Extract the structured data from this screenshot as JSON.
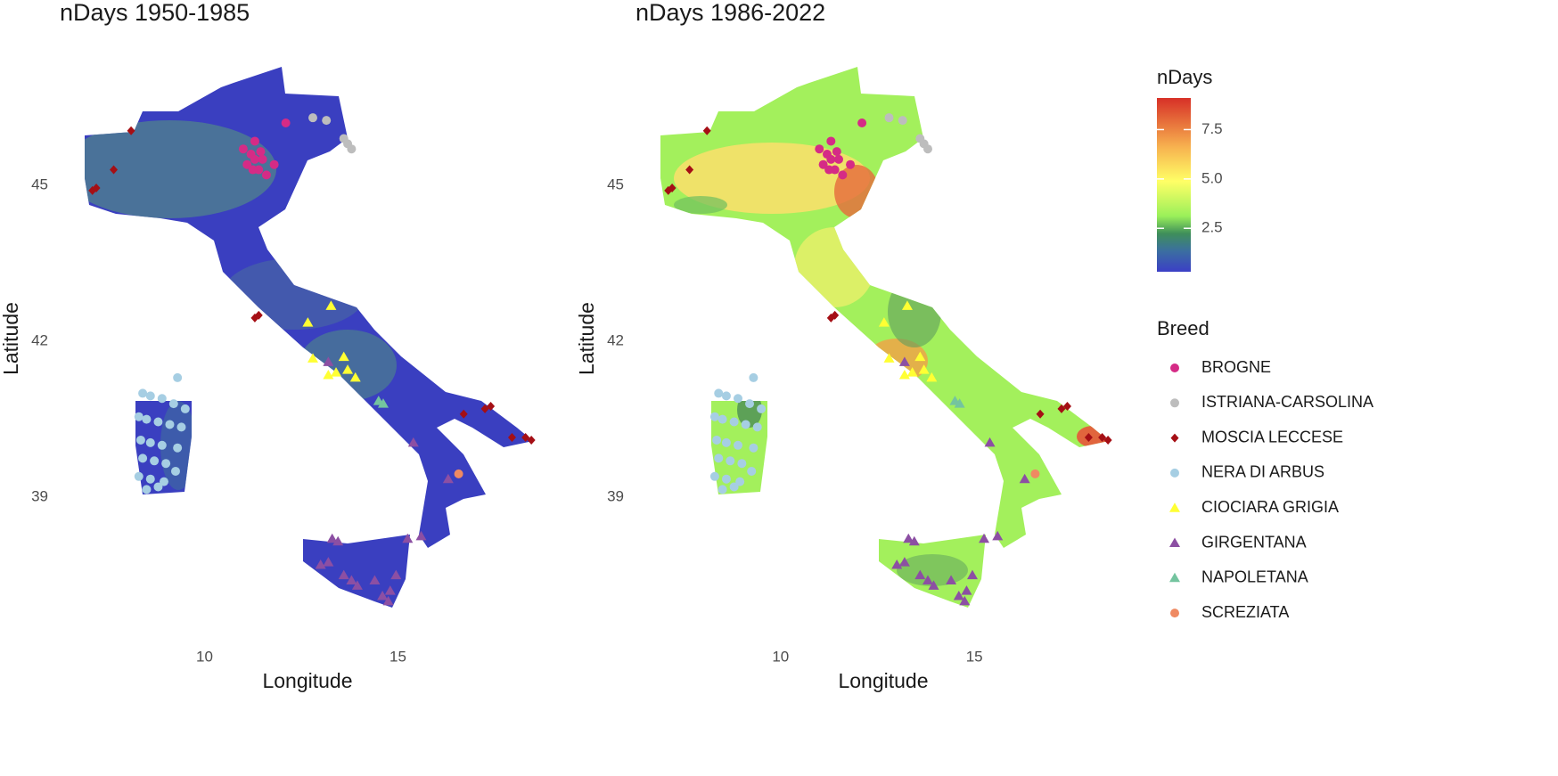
{
  "chart_data": {
    "type": "scatter",
    "panels": [
      {
        "title": "nDays 1950-1985"
      },
      {
        "title": "nDays 1986-2022"
      }
    ],
    "x_label": "Longitude",
    "y_label": "Latitude",
    "xlim": [
      6.6,
      18.7
    ],
    "ylim": [
      36.5,
      47.4
    ],
    "xticks": [
      10,
      15
    ],
    "yticks": [
      39,
      42,
      45
    ],
    "colorbar": {
      "title": "nDays",
      "lim": [
        0.3,
        9.1
      ],
      "ticks": [
        2.5,
        {
          "value": 5,
          "label": "5.0"
        },
        7.5
      ]
    },
    "legend_title": "Breed",
    "series": [
      {
        "name": "BROGNE",
        "color": "#d52b86",
        "shape": "circle",
        "x": [
          11.0,
          11.2,
          11.3,
          11.1,
          11.4,
          11.6,
          11.3,
          11.8,
          12.1,
          11.5,
          11.25,
          11.45
        ],
        "y": [
          45.7,
          45.6,
          45.5,
          45.4,
          45.3,
          45.2,
          45.85,
          45.4,
          46.2,
          45.5,
          45.3,
          45.65
        ]
      },
      {
        "name": "ISTRIANA-CARSOLINA",
        "color": "#bdbdbd",
        "shape": "circle",
        "x": [
          12.8,
          13.15,
          13.6,
          13.7,
          13.8
        ],
        "y": [
          46.3,
          46.25,
          45.9,
          45.8,
          45.7
        ]
      },
      {
        "name": "MOSCIA LECCESE",
        "color": "#a50f15",
        "shape": "diamond",
        "x": [
          8.1,
          7.65,
          7.1,
          7.2,
          11.4,
          11.3,
          16.7,
          17.25,
          17.4,
          17.95,
          18.3,
          18.45
        ],
        "y": [
          46.05,
          45.3,
          44.9,
          44.95,
          42.5,
          42.45,
          40.6,
          40.7,
          40.75,
          40.15,
          40.15,
          40.1
        ]
      },
      {
        "name": "NERA DI ARBUS",
        "color": "#a6cee3",
        "shape": "circle",
        "x": [
          8.4,
          8.6,
          8.9,
          9.2,
          9.5,
          8.3,
          8.5,
          8.8,
          9.1,
          9.4,
          8.35,
          8.6,
          8.9,
          9.3,
          8.4,
          8.7,
          9.0,
          8.3,
          8.6,
          8.95,
          9.25,
          8.5,
          8.8,
          9.3
        ],
        "y": [
          41.0,
          40.95,
          40.9,
          40.8,
          40.7,
          40.55,
          40.5,
          40.45,
          40.4,
          40.35,
          40.1,
          40.05,
          40.0,
          39.95,
          39.75,
          39.7,
          39.65,
          39.4,
          39.35,
          39.3,
          39.5,
          39.15,
          39.2,
          41.3
        ]
      },
      {
        "name": "CIOCIARA GRIGIA",
        "color": "#ffff33",
        "shape": "triangle",
        "x": [
          13.27,
          12.67,
          12.8,
          13.6,
          13.4,
          13.7,
          13.9,
          13.2
        ],
        "y": [
          42.68,
          42.36,
          41.67,
          41.7,
          41.4,
          41.45,
          41.3,
          41.35
        ]
      },
      {
        "name": "GIRGENTANA",
        "color": "#8c4fa3",
        "shape": "triangle",
        "x": [
          15.4,
          16.3,
          13.3,
          13.45,
          15.25,
          15.6,
          13.0,
          13.2,
          13.6,
          13.8,
          13.95,
          14.4,
          14.8,
          14.6,
          14.95,
          14.75,
          13.2
        ],
        "y": [
          40.05,
          39.35,
          38.2,
          38.15,
          38.2,
          38.25,
          37.7,
          37.75,
          37.5,
          37.4,
          37.3,
          37.4,
          37.2,
          37.1,
          37.5,
          37.0,
          41.6
        ]
      },
      {
        "name": "NAPOLETANA",
        "color": "#74c49f",
        "shape": "triangle",
        "x": [
          14.5,
          14.62
        ],
        "y": [
          40.85,
          40.8
        ]
      },
      {
        "name": "SCREZIATA",
        "color": "#ef8a62",
        "shape": "circle",
        "x": [
          16.57
        ],
        "y": [
          39.45
        ]
      }
    ]
  }
}
